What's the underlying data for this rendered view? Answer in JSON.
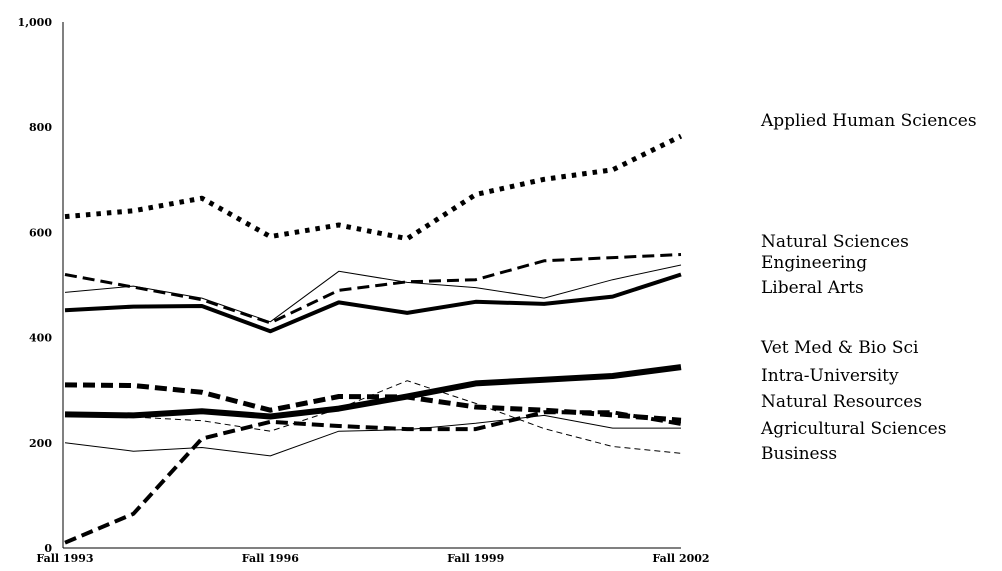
{
  "chart_data": {
    "type": "line",
    "title": "",
    "xlabel": "",
    "ylabel": "",
    "ylim": [
      0,
      1000
    ],
    "yticks": [
      0,
      200,
      400,
      600,
      800,
      1000
    ],
    "ytick_labels": [
      "0",
      "200",
      "400",
      "600",
      "800",
      "1,000"
    ],
    "categories": [
      "Fall 1993",
      "Fall 1994",
      "Fall 1995",
      "Fall 1996",
      "Fall 1997",
      "Fall 1998",
      "Fall 1999",
      "Fall 2000",
      "Fall 2001",
      "Fall 2002"
    ],
    "x_tick_labels": [
      "Fall 1993",
      "Fall 1996",
      "Fall 1999",
      "Fall 2002"
    ],
    "x_tick_indices": [
      0,
      3,
      6,
      9
    ],
    "grid": false,
    "legend_placement": "right",
    "series": [
      {
        "name": "Applied Human Sciences",
        "style": "dotted",
        "width": 5,
        "values": [
          630,
          641,
          665,
          592,
          614,
          588,
          672,
          701,
          719,
          783
        ]
      },
      {
        "name": "Natural Sciences",
        "style": "dashed",
        "width": 3,
        "values": [
          520,
          496,
          472,
          428,
          490,
          506,
          510,
          546,
          552,
          558
        ]
      },
      {
        "name": "Engineering",
        "style": "solid",
        "width": 1,
        "values": [
          486,
          498,
          475,
          430,
          526,
          505,
          495,
          475,
          510,
          538
        ]
      },
      {
        "name": "Liberal Arts",
        "style": "solid",
        "width": 4,
        "values": [
          452,
          459,
          460,
          412,
          467,
          447,
          468,
          464,
          478,
          520
        ]
      },
      {
        "name": "Vet Med & Bio Sci",
        "style": "solid",
        "width": 6,
        "values": [
          254,
          252,
          260,
          250,
          265,
          288,
          313,
          320,
          327,
          344
        ]
      },
      {
        "name": "Intra-University",
        "style": "dashed",
        "width": 5,
        "values": [
          310,
          309,
          296,
          262,
          288,
          287,
          268,
          262,
          253,
          243
        ]
      },
      {
        "name": "Natural Resources",
        "style": "dashed",
        "width": 1,
        "values": [
          252,
          249,
          242,
          222,
          265,
          318,
          275,
          227,
          193,
          180
        ]
      },
      {
        "name": "Agricultural Sciences",
        "style": "dashed",
        "width": 4,
        "values": [
          10,
          65,
          208,
          240,
          232,
          226,
          226,
          258,
          258,
          236
        ]
      },
      {
        "name": "Business",
        "style": "solid",
        "width": 1,
        "values": [
          200,
          184,
          191,
          175,
          222,
          225,
          237,
          252,
          228,
          228
        ]
      }
    ]
  }
}
